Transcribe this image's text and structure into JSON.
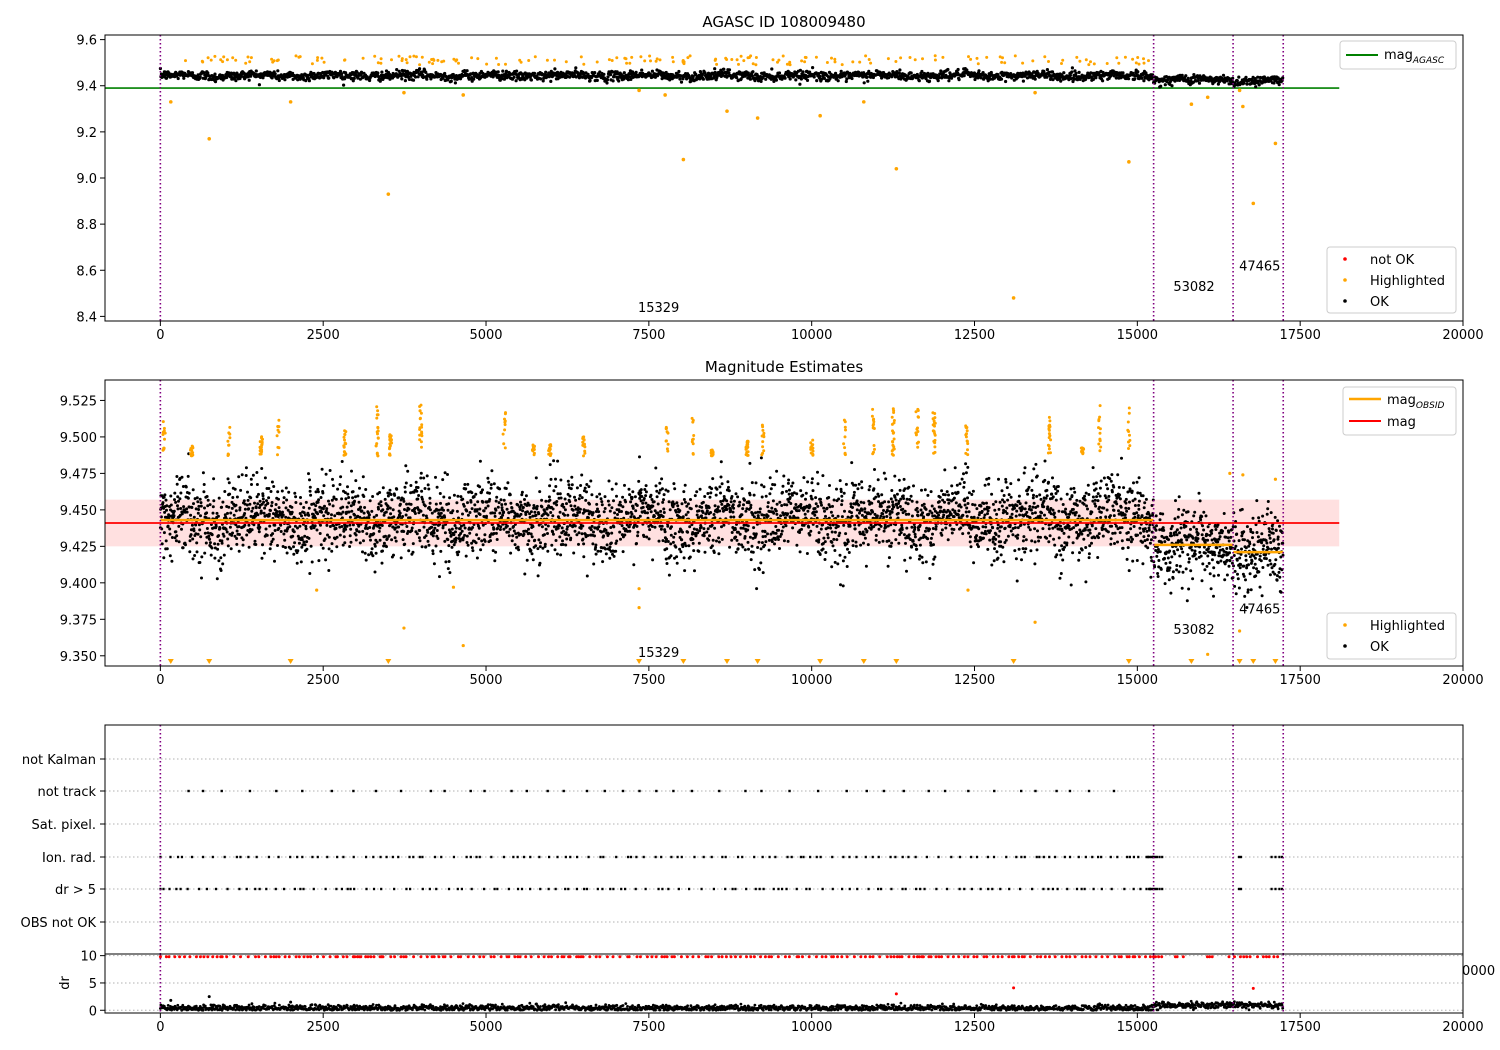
{
  "chart_data": [
    {
      "type": "scatter",
      "title": "AGASC ID 108009480",
      "xlim": [
        -850,
        20000
      ],
      "ylim": [
        8.38,
        9.62
      ],
      "x_ticks": [
        0,
        2500,
        5000,
        7500,
        10000,
        12500,
        15000,
        17500,
        20000
      ],
      "y_ticks": [
        8.4,
        8.6,
        8.8,
        9.0,
        9.2,
        9.4,
        9.6
      ],
      "y_tick_labels": [
        "8.4",
        "8.6",
        "8.8",
        "9.0",
        "9.2",
        "9.4",
        "9.6"
      ],
      "obsid_boundaries": [
        0,
        15250,
        16470,
        17240
      ],
      "obsid_labels": [
        {
          "text": "15329",
          "x": 7650,
          "y": 8.42
        },
        {
          "text": "53082",
          "x": 15870,
          "y": 8.51
        },
        {
          "text": "47465",
          "x": 16880,
          "y": 8.6
        }
      ],
      "lines": [
        {
          "name": "mag_AGASC",
          "color": "#008000",
          "value": 9.39,
          "x_range": [
            -850,
            18100
          ]
        }
      ],
      "series": [
        {
          "name": "not OK",
          "color": "#ff0000",
          "points": []
        },
        {
          "name": "Highlighted",
          "color": "#ffa500",
          "points": [
            [
              160,
              9.33
            ],
            [
              750,
              9.17
            ],
            [
              2000,
              9.33
            ],
            [
              3500,
              8.93
            ],
            [
              3740,
              9.37
            ],
            [
              4650,
              9.36
            ],
            [
              7350,
              9.38
            ],
            [
              7750,
              9.36
            ],
            [
              8030,
              9.08
            ],
            [
              8700,
              9.29
            ],
            [
              9170,
              9.26
            ],
            [
              10130,
              9.27
            ],
            [
              10800,
              9.33
            ],
            [
              11300,
              9.04
            ],
            [
              13100,
              8.48
            ],
            [
              13430,
              9.37
            ],
            [
              14870,
              9.07
            ],
            [
              15830,
              9.32
            ],
            [
              16080,
              9.35
            ],
            [
              16570,
              9.38
            ],
            [
              16620,
              9.31
            ],
            [
              16780,
              8.89
            ],
            [
              17120,
              9.15
            ]
          ]
        },
        {
          "name": "OK",
          "color": "#000000",
          "points": []
        }
      ],
      "legends": [
        {
          "position": "upper right",
          "entries": [
            "mag_AGASC"
          ]
        },
        {
          "position": "lower right",
          "entries": [
            "not OK",
            "Highlighted",
            "OK"
          ]
        }
      ]
    },
    {
      "type": "scatter",
      "title": "Magnitude Estimates",
      "xlim": [
        -850,
        20000
      ],
      "ylim": [
        9.343,
        9.539
      ],
      "x_ticks": [
        0,
        2500,
        5000,
        7500,
        10000,
        12500,
        15000,
        17500,
        20000
      ],
      "y_ticks": [
        9.35,
        9.375,
        9.4,
        9.425,
        9.45,
        9.475,
        9.5,
        9.525
      ],
      "y_tick_labels": [
        "9.350",
        "9.375",
        "9.400",
        "9.425",
        "9.450",
        "9.475",
        "9.500",
        "9.525"
      ],
      "obsid_boundaries": [
        0,
        15250,
        16470,
        17240
      ],
      "obsid_labels": [
        {
          "text": "15329",
          "x": 7650,
          "y": 9.349
        },
        {
          "text": "53082",
          "x": 15870,
          "y": 9.365
        },
        {
          "text": "47465",
          "x": 16880,
          "y": 9.379
        }
      ],
      "mag": {
        "value": 9.441,
        "band": [
          9.425,
          9.457
        ],
        "color": "#ff0000",
        "x_range": [
          -850,
          18100
        ]
      },
      "mag_obsid": [
        {
          "value": 9.443,
          "x_range": [
            0,
            15250
          ]
        },
        {
          "value": 9.426,
          "x_range": [
            15250,
            16470
          ]
        },
        {
          "value": 9.421,
          "x_range": [
            16470,
            17240
          ]
        }
      ],
      "mag_obsid_color": "#ffa500",
      "out_of_range_markers": [
        160,
        750,
        2000,
        3500,
        7350,
        8030,
        8700,
        9170,
        10130,
        10800,
        11300,
        13100,
        14870,
        15830,
        16570,
        16780,
        17120
      ],
      "series": [
        {
          "name": "Highlighted",
          "color": "#ffa500",
          "points": [
            [
              3740,
              9.369
            ],
            [
              4650,
              9.357
            ],
            [
              7350,
              9.396
            ],
            [
              7350,
              9.383
            ],
            [
              12400,
              9.395
            ],
            [
              13430,
              9.373
            ],
            [
              4500,
              9.397
            ],
            [
              2400,
              9.395
            ],
            [
              16080,
              9.351
            ],
            [
              16570,
              9.367
            ],
            [
              16620,
              9.474
            ],
            [
              17120,
              9.471
            ],
            [
              16420,
              9.475
            ]
          ]
        },
        {
          "name": "OK",
          "color": "#000000",
          "points": []
        }
      ],
      "legends": [
        {
          "position": "upper right",
          "entries": [
            "mag_OBSID",
            "mag"
          ]
        },
        {
          "position": "lower right",
          "entries": [
            "Highlighted",
            "OK"
          ]
        }
      ]
    },
    {
      "type": "scatter",
      "title": "",
      "xlim": [
        -850,
        20000
      ],
      "obsid_boundaries": [
        0,
        15250,
        16470,
        17240
      ],
      "categories": [
        "not Kalman",
        "not track",
        "Sat. pixel.",
        "Ion. rad.",
        "dr > 5",
        "OBS not OK"
      ],
      "ion_rad_extra": [
        15140,
        15180,
        15210,
        15240,
        15270,
        15300,
        15340,
        15380,
        16560,
        16590,
        17060,
        17120,
        17180,
        17220
      ],
      "series": []
    },
    {
      "type": "scatter",
      "title": "",
      "xlim": [
        -850,
        20000
      ],
      "ylim": [
        -0.5,
        10.3
      ],
      "x_ticks": [
        0,
        2500,
        5000,
        7500,
        10000,
        12500,
        15000,
        17500,
        20000
      ],
      "y_ticks": [
        0,
        5,
        10
      ],
      "y_tick_labels": [
        "0",
        "5",
        "10"
      ],
      "ylabel": "dr",
      "clipped_tick_label": "0000",
      "obsid_boundaries": [
        0,
        15250,
        16470,
        17240
      ],
      "series": [
        {
          "name": "dr > 5",
          "color": "#ff0000",
          "points": [
            [
              11300,
              3.0
            ],
            [
              13100,
              4.1
            ],
            [
              16780,
              4.0
            ]
          ]
        },
        {
          "name": "dr",
          "color": "#000000",
          "points": [
            [
              750,
              2.5
            ],
            [
              160,
              1.8
            ],
            [
              2000,
              1.5
            ]
          ]
        }
      ]
    }
  ],
  "legend_text": {
    "mag_agasc_base": "mag",
    "mag_agasc_sub": "AGASC",
    "not_ok": "not OK",
    "highlighted": "Highlighted",
    "ok": "OK",
    "mag_obsid_base": "mag",
    "mag_obsid_sub": "OBSID",
    "mag": "mag"
  }
}
